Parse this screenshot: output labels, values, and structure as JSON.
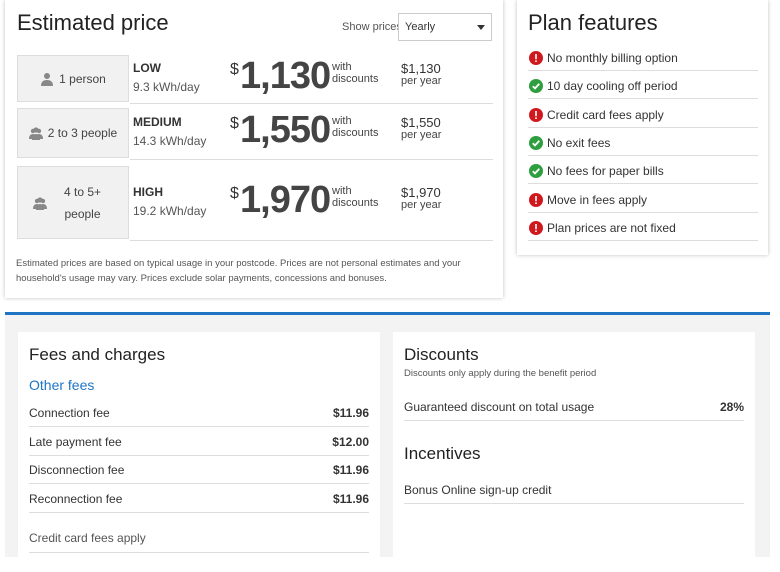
{
  "estimated_price": {
    "title": "Estimated price",
    "show_prices_label": "Show prices:",
    "show_prices_option": "Yearly",
    "rows": [
      {
        "household": "1 person",
        "level": "LOW",
        "usage": "9.3 kWh/day",
        "currency": "$",
        "price": "1,130",
        "price_note": "with discounts",
        "alt_price": "$1,130",
        "alt_period": "per year"
      },
      {
        "household": "2 to 3 people",
        "level": "MEDIUM",
        "usage": "14.3 kWh/day",
        "currency": "$",
        "price": "1,550",
        "price_note": "with discounts",
        "alt_price": "$1,550",
        "alt_period": "per year"
      },
      {
        "household": "4 to 5+ people",
        "level": "HIGH",
        "usage": "19.2 kWh/day",
        "currency": "$",
        "price": "1,970",
        "price_note": "with discounts",
        "alt_price": "$1,970",
        "alt_period": "per year"
      }
    ],
    "note": "Estimated prices are based on typical usage in your postcode. Prices are not personal estimates and your household's usage may vary. Prices exclude solar payments, concessions and bonuses."
  },
  "plan_features": {
    "title": "Plan features",
    "items": [
      {
        "text": "No monthly billing option",
        "status": "negative"
      },
      {
        "text": "10 day cooling off period",
        "status": "positive"
      },
      {
        "text": "Credit card fees apply",
        "status": "negative"
      },
      {
        "text": "No exit fees",
        "status": "positive"
      },
      {
        "text": "No fees for paper bills",
        "status": "positive"
      },
      {
        "text": "Move in fees apply",
        "status": "negative"
      },
      {
        "text": "Plan prices are not fixed",
        "status": "negative"
      }
    ]
  },
  "fees": {
    "title": "Fees and charges",
    "subtitle": "Other fees",
    "items": [
      {
        "label": "Connection fee",
        "value": "$11.96"
      },
      {
        "label": "Late payment fee",
        "value": "$12.00"
      },
      {
        "label": "Disconnection fee",
        "value": "$11.96"
      },
      {
        "label": "Reconnection fee",
        "value": "$11.96"
      }
    ],
    "footer": "Credit card fees apply"
  },
  "discounts": {
    "title": "Discounts",
    "subtitle": "Discounts only apply during the benefit period",
    "items": [
      {
        "label": "Guaranteed discount on total usage",
        "value": "28%"
      }
    ]
  },
  "incentives": {
    "title": "Incentives",
    "items": [
      "Bonus Online sign-up credit"
    ]
  }
}
